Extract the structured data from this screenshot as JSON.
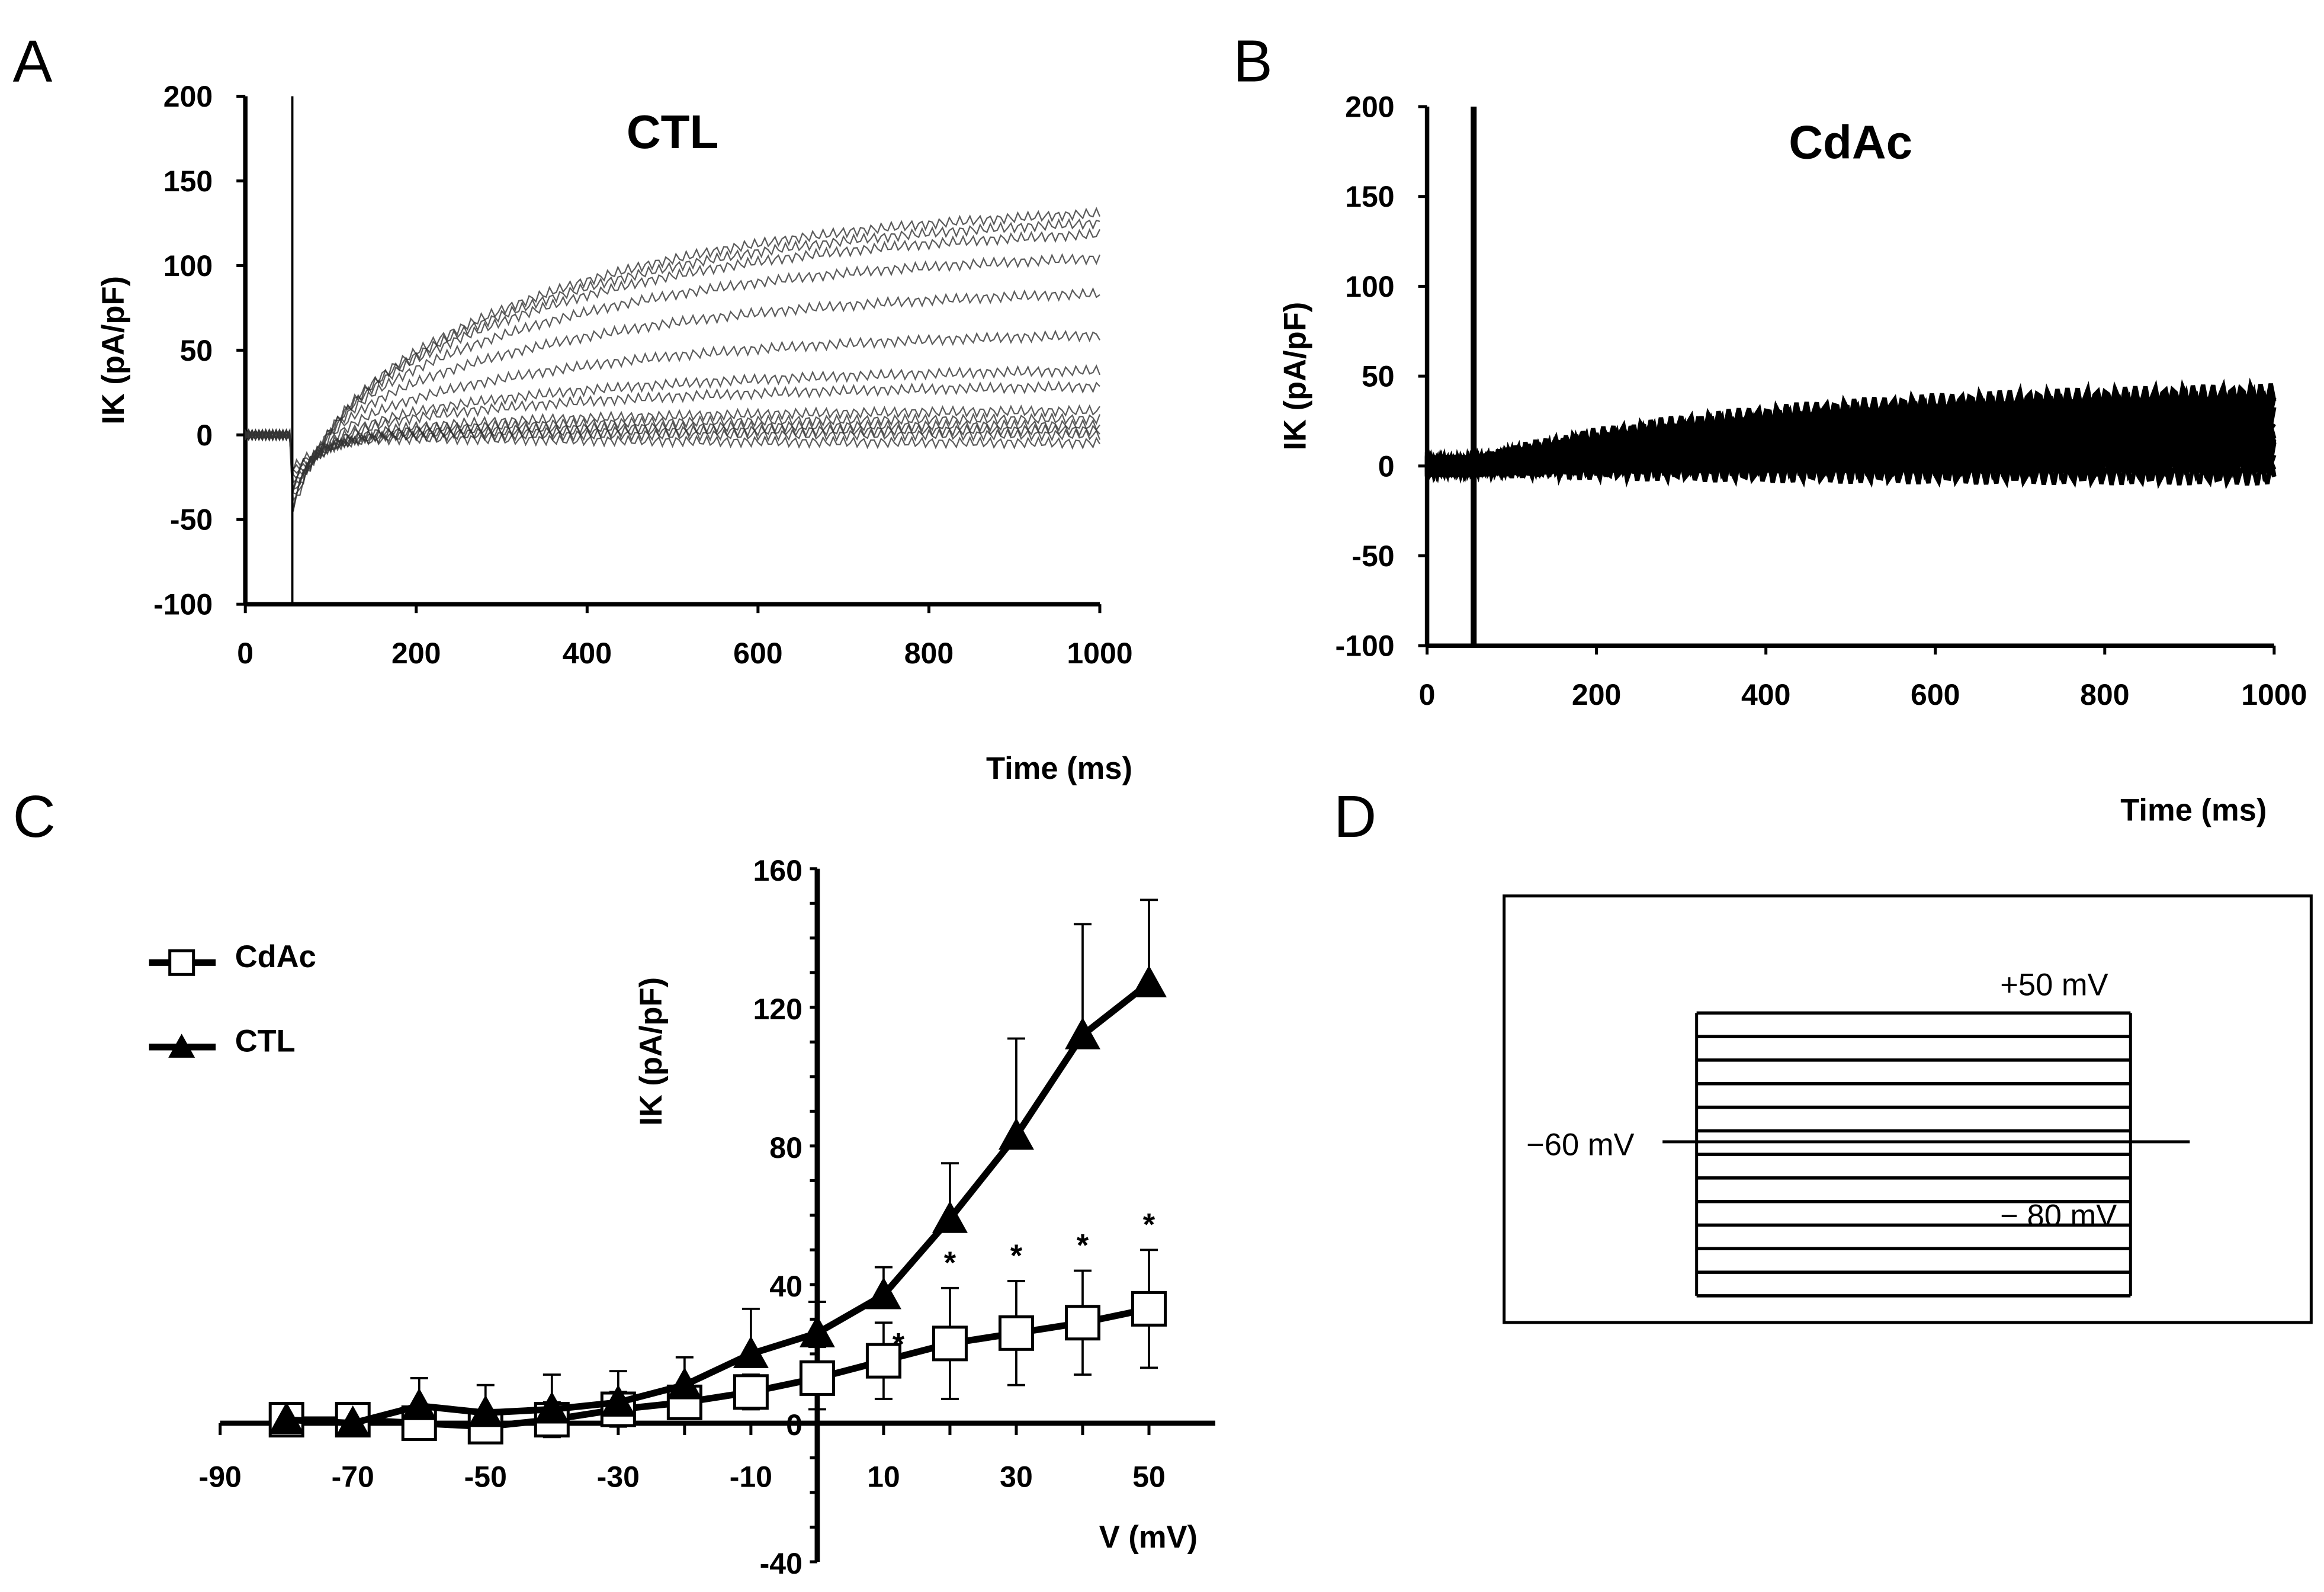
{
  "panel_labels": [
    "A",
    "B",
    "C",
    "D"
  ],
  "chart_data": [
    {
      "type": "line",
      "panel": "A",
      "title": "CTL",
      "xlabel": "Time (ms)",
      "ylabel": "IK (pA/pF)",
      "xlim": [
        0,
        1000
      ],
      "ylim": [
        -100,
        200
      ],
      "xticks": [
        "0",
        "200",
        "400",
        "600",
        "800",
        "1000"
      ],
      "yticks": [
        "200",
        "150",
        "100",
        "50",
        "0",
        "-50",
        "-100"
      ],
      "pulse_start_ms": 55,
      "trace_steady_state": [
        -5,
        0,
        3,
        6,
        10,
        15,
        30,
        40,
        62,
        88,
        110,
        125,
        132,
        138
      ]
    },
    {
      "type": "line",
      "panel": "B",
      "title": "CdAc",
      "xlabel": "Time (ms)",
      "ylabel": "IK (pA/pF)",
      "xlim": [
        0,
        1000
      ],
      "ylim": [
        -100,
        200
      ],
      "xticks": [
        "0",
        "200",
        "400",
        "600",
        "800",
        "1000"
      ],
      "yticks": [
        "200",
        "150",
        "100",
        "50",
        "0",
        "-50",
        "-100"
      ],
      "pulse_start_ms": 55,
      "trace_steady_state": [
        -5,
        0,
        3,
        6,
        8,
        10,
        14,
        18,
        22,
        26,
        30,
        34,
        38,
        42
      ]
    },
    {
      "type": "line",
      "panel": "C",
      "xlabel": "V (mV)",
      "ylabel": "IK (pA/pF)",
      "xlim": [
        -90,
        60
      ],
      "ylim": [
        -40,
        160
      ],
      "xticks": [
        "-90",
        "-70",
        "-50",
        "-30",
        "-10",
        "10",
        "30",
        "50"
      ],
      "yticks": [
        "160",
        "120",
        "80",
        "40",
        "0",
        "-40"
      ],
      "x": [
        -80,
        -70,
        -60,
        -50,
        -40,
        -30,
        -20,
        -10,
        0,
        10,
        20,
        30,
        40,
        50
      ],
      "series": [
        {
          "name": "CdAc",
          "marker": "open-square",
          "values": [
            1,
            1,
            0,
            -1,
            1,
            4,
            6,
            9,
            13,
            18,
            23,
            26,
            29,
            33
          ],
          "err": [
            2,
            2,
            3,
            4,
            5,
            5,
            4,
            5,
            9,
            11,
            16,
            15,
            15,
            17
          ]
        },
        {
          "name": "CTL",
          "marker": "filled-triangle",
          "values": [
            1,
            0,
            5,
            3,
            4,
            6,
            11,
            20,
            26,
            37,
            59,
            83,
            112,
            127
          ],
          "err": [
            2,
            2,
            8,
            8,
            10,
            9,
            8,
            13,
            9,
            8,
            16,
            28,
            32,
            24
          ]
        }
      ],
      "significance": {
        "symbol": "*",
        "x": [
          10,
          20,
          30,
          40,
          50
        ]
      },
      "legend": "top-left"
    },
    {
      "type": "diagram",
      "panel": "D",
      "labels": {
        "top": "+50 mV",
        "hold": "−60 mV",
        "bottom": "− 80 mV"
      },
      "steps": 13
    }
  ]
}
